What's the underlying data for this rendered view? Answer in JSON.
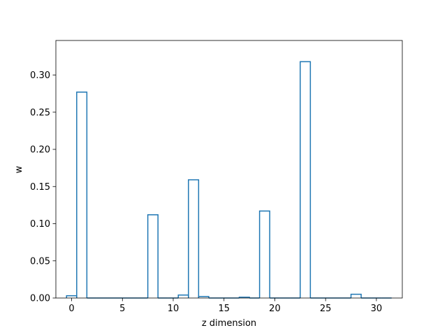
{
  "chart_data": {
    "type": "step",
    "title": "",
    "xlabel": "z dimension",
    "ylabel": "w",
    "xlim": [
      -1.55,
      32.55
    ],
    "ylim": [
      0,
      0.3465
    ],
    "grid": false,
    "legend": "none",
    "colors": {
      "series": "#1f77b4",
      "axes": "#000000",
      "background": "#ffffff"
    },
    "xticks": [
      0,
      5,
      10,
      15,
      20,
      25,
      30
    ],
    "xtick_labels": [
      "0",
      "5",
      "10",
      "15",
      "20",
      "25",
      "30"
    ],
    "yticks": [
      0.0,
      0.05,
      0.1,
      0.15,
      0.2,
      0.25,
      0.3
    ],
    "ytick_labels": [
      "0.00",
      "0.05",
      "0.10",
      "0.15",
      "0.20",
      "0.25",
      "0.30"
    ],
    "x": [
      0,
      1,
      2,
      3,
      4,
      5,
      6,
      7,
      8,
      9,
      10,
      11,
      12,
      13,
      14,
      15,
      16,
      17,
      18,
      19,
      20,
      21,
      22,
      23,
      24,
      25,
      26,
      27,
      28,
      29,
      30,
      31
    ],
    "values": [
      0.003,
      0.277,
      0,
      0,
      0,
      0,
      0,
      0,
      0.112,
      0,
      0,
      0.004,
      0.159,
      0.002,
      0,
      0,
      0,
      0.001,
      0,
      0.117,
      0,
      0,
      0,
      0.318,
      0,
      0,
      0,
      0,
      0.005,
      0,
      0,
      0
    ]
  }
}
